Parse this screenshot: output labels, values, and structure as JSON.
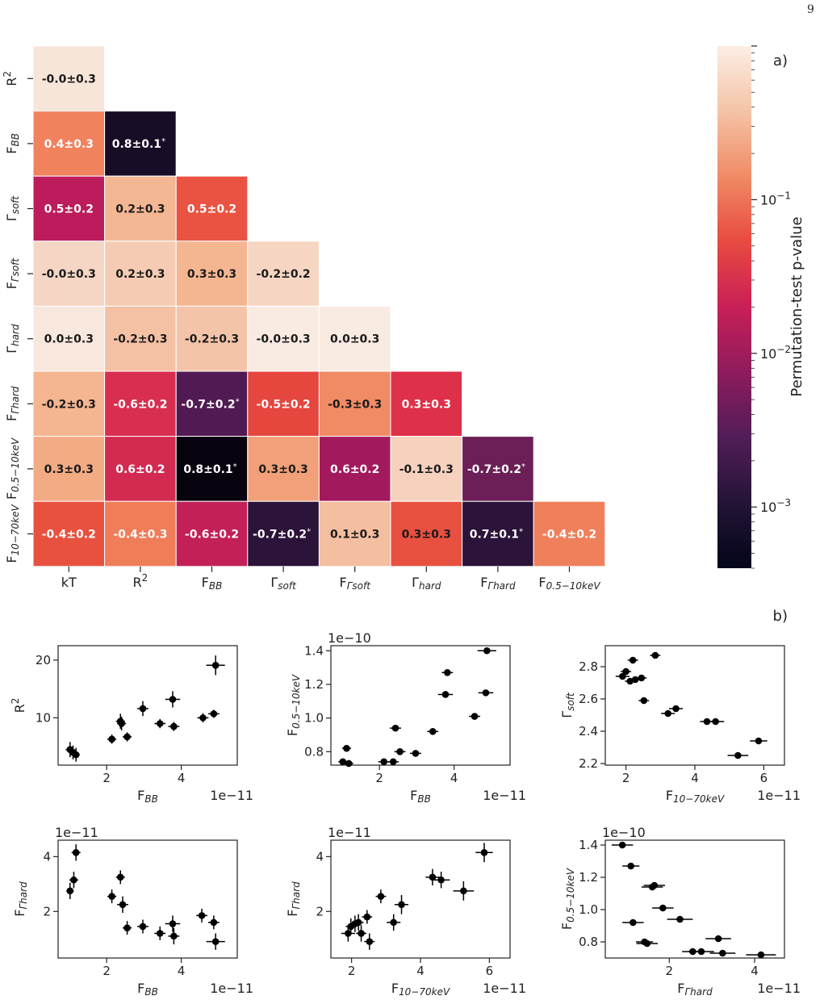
{
  "page_number": "9",
  "colors": {
    "text_dark": "#1a1a1a",
    "text_light": "#ffffff",
    "frame": "#222222"
  },
  "chart_data": [
    {
      "type": "heatmap",
      "panel_label": "a)",
      "row_labels": [
        {
          "base": "R",
          "sup": "2"
        },
        {
          "base": "F",
          "sub": "BB"
        },
        {
          "base": "Γ",
          "sub": "soft"
        },
        {
          "base": "F",
          "sub": "Γsoft"
        },
        {
          "base": "Γ",
          "sub": "hard"
        },
        {
          "base": "F",
          "sub": "Γhard"
        },
        {
          "base": "F",
          "sub": "0.5−10keV"
        },
        {
          "base": "F",
          "sub": "10−70keV"
        }
      ],
      "col_labels": [
        {
          "base": "kT"
        },
        {
          "base": "R",
          "sup": "2"
        },
        {
          "base": "F",
          "sub": "BB"
        },
        {
          "base": "Γ",
          "sub": "soft"
        },
        {
          "base": "F",
          "sub": "Γsoft"
        },
        {
          "base": "Γ",
          "sub": "hard"
        },
        {
          "base": "F",
          "sub": "Γhard"
        },
        {
          "base": "F",
          "sub": "0.5−10keV"
        }
      ],
      "cells": [
        [
          {
            "text": "-0.0±0.3",
            "color": "#f8e5d9",
            "dark": true
          }
        ],
        [
          {
            "text": "0.4±0.3",
            "color": "#f0825e",
            "dark": false
          },
          {
            "text": "0.8±0.1",
            "star": true,
            "color": "#170d26",
            "dark": false
          }
        ],
        [
          {
            "text": "0.5±0.2",
            "color": "#bc1c5b",
            "dark": false
          },
          {
            "text": "0.2±0.3",
            "color": "#f4b794",
            "dark": true
          },
          {
            "text": "0.5±0.2",
            "color": "#ea5342",
            "dark": false
          }
        ],
        [
          {
            "text": "-0.0±0.3",
            "color": "#f5d6c4",
            "dark": true
          },
          {
            "text": "0.2±0.3",
            "color": "#f5ccb3",
            "dark": true
          },
          {
            "text": "0.3±0.3",
            "color": "#f4b691",
            "dark": true
          },
          {
            "text": "-0.2±0.2",
            "color": "#f6d6c3",
            "dark": true
          }
        ],
        [
          {
            "text": "0.0±0.3",
            "color": "#f8e7dc",
            "dark": true
          },
          {
            "text": "-0.2±0.3",
            "color": "#f4c1a4",
            "dark": true
          },
          {
            "text": "-0.2±0.3",
            "color": "#f4c4a8",
            "dark": true
          },
          {
            "text": "-0.0±0.3",
            "color": "#f9ebe2",
            "dark": true
          },
          {
            "text": "0.0±0.3",
            "color": "#f9ebe2",
            "dark": true
          }
        ],
        [
          {
            "text": "-0.2±0.3",
            "color": "#f4b590",
            "dark": true
          },
          {
            "text": "-0.6±0.2",
            "color": "#d82e4f",
            "dark": false
          },
          {
            "text": "-0.7±0.2",
            "star": true,
            "color": "#521a52",
            "dark": false
          },
          {
            "text": "-0.5±0.2",
            "color": "#e5463e",
            "dark": false
          },
          {
            "text": "-0.3±0.3",
            "color": "#f08b65",
            "dark": true
          },
          {
            "text": "0.3±0.3",
            "color": "#de3049",
            "dark": false
          }
        ],
        [
          {
            "text": "0.3±0.3",
            "color": "#f3ab84",
            "dark": true
          },
          {
            "text": "0.6±0.2",
            "color": "#d32a52",
            "dark": false
          },
          {
            "text": "0.8±0.1",
            "star": true,
            "color": "#08030f",
            "dark": false
          },
          {
            "text": "0.3±0.3",
            "color": "#f1a07a",
            "dark": true
          },
          {
            "text": "0.6±0.2",
            "color": "#a21a5d",
            "dark": false
          },
          {
            "text": "-0.1±0.3",
            "color": "#f6d2be",
            "dark": true
          },
          {
            "text": "-0.7±0.2",
            "star": true,
            "color": "#6c1f56",
            "dark": false
          }
        ],
        [
          {
            "text": "-0.4±0.2",
            "color": "#e8513f",
            "dark": false
          },
          {
            "text": "-0.4±0.3",
            "color": "#ef7d58",
            "dark": false
          },
          {
            "text": "-0.6±0.2",
            "color": "#c32058",
            "dark": false
          },
          {
            "text": "-0.7±0.2",
            "star": true,
            "color": "#2b1339",
            "dark": false
          },
          {
            "text": "0.1±0.3",
            "color": "#f4bea0",
            "dark": true
          },
          {
            "text": "0.3±0.3",
            "color": "#e8503f",
            "dark": true
          },
          {
            "text": "0.7±0.1",
            "star": true,
            "color": "#2b1339",
            "dark": false
          },
          {
            "text": "-0.4±0.2",
            "color": "#ef805b",
            "dark": false
          }
        ]
      ],
      "colorbar": {
        "label": "Permutation-test p-value",
        "scale": "log",
        "range": [
          0.0004,
          1.0
        ],
        "ticks": [
          {
            "value": 0.1,
            "label": "10−1"
          },
          {
            "value": 0.01,
            "label": "10−2"
          },
          {
            "value": 0.001,
            "label": "10−3"
          }
        ],
        "stops": [
          "#fbeee4",
          "#f5c3a6",
          "#ef8b65",
          "#e84a40",
          "#c81f57",
          "#8e1b5d",
          "#511d57",
          "#241436",
          "#03051a"
        ]
      }
    },
    {
      "type": "scatter",
      "panel_label": "b)",
      "xlabel": {
        "base": "F",
        "sub": "BB"
      },
      "ylabel": {
        "base": "R",
        "sup": "2"
      },
      "x_offset": "1e−11",
      "y_offset": "",
      "xlim": [
        0.7,
        5.5
      ],
      "ylim": [
        1.8,
        22.5
      ],
      "xticks": [
        2,
        4
      ],
      "yticks": [
        10,
        20
      ],
      "points": [
        [
          1.02,
          4.5,
          0.12,
          1.3
        ],
        [
          1.1,
          4.0,
          0.1,
          1.2
        ],
        [
          1.18,
          3.6,
          0.1,
          1.2
        ],
        [
          2.14,
          6.3,
          0.12,
          0.8
        ],
        [
          2.37,
          9.4,
          0.12,
          1.3
        ],
        [
          2.4,
          9.0,
          0.12,
          1.2
        ],
        [
          2.55,
          6.7,
          0.12,
          0.8
        ],
        [
          2.97,
          11.6,
          0.15,
          1.3
        ],
        [
          3.43,
          9.0,
          0.15,
          0.8
        ],
        [
          3.77,
          13.2,
          0.2,
          1.4
        ],
        [
          3.8,
          8.5,
          0.15,
          0.8
        ],
        [
          4.58,
          10.0,
          0.15,
          0.8
        ],
        [
          4.87,
          10.7,
          0.15,
          0.7
        ],
        [
          4.92,
          19.1,
          0.25,
          1.7
        ]
      ]
    },
    {
      "type": "scatter",
      "xlabel": {
        "base": "F",
        "sub": "BB"
      },
      "ylabel": {
        "base": "F",
        "sub": "0.5−10keV"
      },
      "x_offset": "1e−11",
      "y_offset": "1e−10",
      "xlim": [
        0.7,
        5.5
      ],
      "ylim": [
        0.72,
        1.43
      ],
      "xticks": [
        2,
        4
      ],
      "yticks": [
        0.8,
        1.0,
        1.2,
        1.4
      ],
      "yticklabels": [
        "0.8",
        "1.0",
        "1.2",
        "1.4"
      ],
      "points": [
        [
          1.02,
          0.74,
          0.12,
          0.01
        ],
        [
          1.12,
          0.82,
          0.12,
          0.01
        ],
        [
          1.18,
          0.73,
          0.12,
          0.01
        ],
        [
          2.12,
          0.74,
          0.15,
          0.01
        ],
        [
          2.37,
          0.74,
          0.15,
          0.01
        ],
        [
          2.43,
          0.94,
          0.15,
          0.01
        ],
        [
          2.55,
          0.8,
          0.15,
          0.01
        ],
        [
          2.97,
          0.79,
          0.15,
          0.01
        ],
        [
          3.43,
          0.92,
          0.15,
          0.01
        ],
        [
          3.77,
          1.14,
          0.2,
          0.01
        ],
        [
          3.82,
          1.27,
          0.15,
          0.01
        ],
        [
          4.55,
          1.01,
          0.15,
          0.01
        ],
        [
          4.85,
          1.15,
          0.2,
          0.01
        ],
        [
          4.88,
          1.4,
          0.25,
          0.01
        ]
      ]
    },
    {
      "type": "scatter",
      "xlabel": {
        "base": "F",
        "sub": "10−70keV"
      },
      "ylabel": {
        "base": "Γ",
        "sub": "soft"
      },
      "x_offset": "1e−11",
      "y_offset": "",
      "xlim": [
        1.4,
        6.6
      ],
      "ylim": [
        2.19,
        2.93
      ],
      "xticks": [
        2,
        4,
        6
      ],
      "yticks": [
        2.2,
        2.4,
        2.6,
        2.8
      ],
      "yticklabels": [
        "2.2",
        "2.4",
        "2.6",
        "2.8"
      ],
      "points": [
        [
          1.9,
          2.74,
          0.2,
          0.02
        ],
        [
          2.0,
          2.77,
          0.15,
          0.02
        ],
        [
          2.12,
          2.71,
          0.15,
          0.02
        ],
        [
          2.2,
          2.84,
          0.15,
          0.02
        ],
        [
          2.27,
          2.72,
          0.15,
          0.02
        ],
        [
          2.45,
          2.73,
          0.15,
          0.02
        ],
        [
          2.52,
          2.59,
          0.15,
          0.02
        ],
        [
          2.85,
          2.87,
          0.15,
          0.02
        ],
        [
          3.22,
          2.51,
          0.2,
          0.02
        ],
        [
          3.45,
          2.54,
          0.2,
          0.02
        ],
        [
          4.35,
          2.46,
          0.2,
          0.02
        ],
        [
          4.6,
          2.46,
          0.25,
          0.02
        ],
        [
          5.25,
          2.25,
          0.3,
          0.02
        ],
        [
          5.85,
          2.34,
          0.25,
          0.02
        ]
      ]
    },
    {
      "type": "scatter",
      "xlabel": {
        "base": "F",
        "sub": "BB"
      },
      "ylabel": {
        "base": "F",
        "sub": "Γhard"
      },
      "x_offset": "1e−11",
      "y_offset": "1e−11",
      "xlim": [
        0.7,
        5.5
      ],
      "ylim": [
        0.3,
        4.6
      ],
      "xticks": [
        2,
        4
      ],
      "yticks": [
        2,
        4
      ],
      "points": [
        [
          1.02,
          2.75,
          0.1,
          0.3
        ],
        [
          1.12,
          3.15,
          0.12,
          0.3
        ],
        [
          1.18,
          4.15,
          0.12,
          0.3
        ],
        [
          2.14,
          2.55,
          0.12,
          0.25
        ],
        [
          2.37,
          3.25,
          0.12,
          0.25
        ],
        [
          2.43,
          2.25,
          0.15,
          0.3
        ],
        [
          2.55,
          1.4,
          0.12,
          0.25
        ],
        [
          2.97,
          1.45,
          0.15,
          0.25
        ],
        [
          3.43,
          1.2,
          0.15,
          0.25
        ],
        [
          3.77,
          1.55,
          0.2,
          0.3
        ],
        [
          3.8,
          1.1,
          0.15,
          0.3
        ],
        [
          4.55,
          1.85,
          0.15,
          0.25
        ],
        [
          4.87,
          1.6,
          0.15,
          0.25
        ],
        [
          4.92,
          0.9,
          0.25,
          0.3
        ]
      ]
    },
    {
      "type": "scatter",
      "xlabel": {
        "base": "F",
        "sub": "10−70keV"
      },
      "ylabel": {
        "base": "F",
        "sub": "Γhard"
      },
      "x_offset": "1e−11",
      "y_offset": "1e−11",
      "xlim": [
        1.4,
        6.6
      ],
      "ylim": [
        0.3,
        4.6
      ],
      "xticks": [
        2,
        4,
        6
      ],
      "yticks": [
        2,
        4
      ],
      "points": [
        [
          1.9,
          1.2,
          0.2,
          0.3
        ],
        [
          1.98,
          1.45,
          0.15,
          0.3
        ],
        [
          2.1,
          1.55,
          0.15,
          0.3
        ],
        [
          2.2,
          1.6,
          0.15,
          0.3
        ],
        [
          2.28,
          1.2,
          0.15,
          0.3
        ],
        [
          2.45,
          1.8,
          0.15,
          0.25
        ],
        [
          2.52,
          0.9,
          0.15,
          0.3
        ],
        [
          2.85,
          2.55,
          0.15,
          0.25
        ],
        [
          3.22,
          1.6,
          0.2,
          0.3
        ],
        [
          3.45,
          2.25,
          0.2,
          0.35
        ],
        [
          4.35,
          3.25,
          0.2,
          0.3
        ],
        [
          4.6,
          3.15,
          0.25,
          0.3
        ],
        [
          5.25,
          2.75,
          0.3,
          0.35
        ],
        [
          5.85,
          4.15,
          0.25,
          0.35
        ]
      ]
    },
    {
      "type": "scatter",
      "xlabel": {
        "base": "F",
        "sub": "Γhard"
      },
      "ylabel": {
        "base": "F",
        "sub": "0.5−10keV"
      },
      "x_offset": "1e−11",
      "y_offset": "1e−10",
      "xlim": [
        0.5,
        4.7
      ],
      "ylim": [
        0.7,
        1.43
      ],
      "xticks": [
        2,
        4
      ],
      "yticks": [
        0.8,
        1.0,
        1.2,
        1.4
      ],
      "yticklabels": [
        "0.8",
        "1.0",
        "1.2",
        "1.4"
      ],
      "points": [
        [
          0.9,
          1.4,
          0.25,
          0.01
        ],
        [
          1.1,
          1.27,
          0.2,
          0.01
        ],
        [
          1.15,
          0.92,
          0.25,
          0.01
        ],
        [
          1.42,
          0.8,
          0.2,
          0.01
        ],
        [
          1.48,
          0.79,
          0.25,
          0.01
        ],
        [
          1.6,
          1.14,
          0.25,
          0.01
        ],
        [
          1.65,
          1.15,
          0.25,
          0.01
        ],
        [
          1.85,
          1.01,
          0.25,
          0.01
        ],
        [
          2.25,
          0.94,
          0.3,
          0.01
        ],
        [
          2.55,
          0.74,
          0.25,
          0.01
        ],
        [
          2.75,
          0.74,
          0.3,
          0.01
        ],
        [
          3.15,
          0.82,
          0.3,
          0.01
        ],
        [
          3.25,
          0.73,
          0.3,
          0.01
        ],
        [
          4.15,
          0.72,
          0.35,
          0.01
        ]
      ]
    }
  ]
}
